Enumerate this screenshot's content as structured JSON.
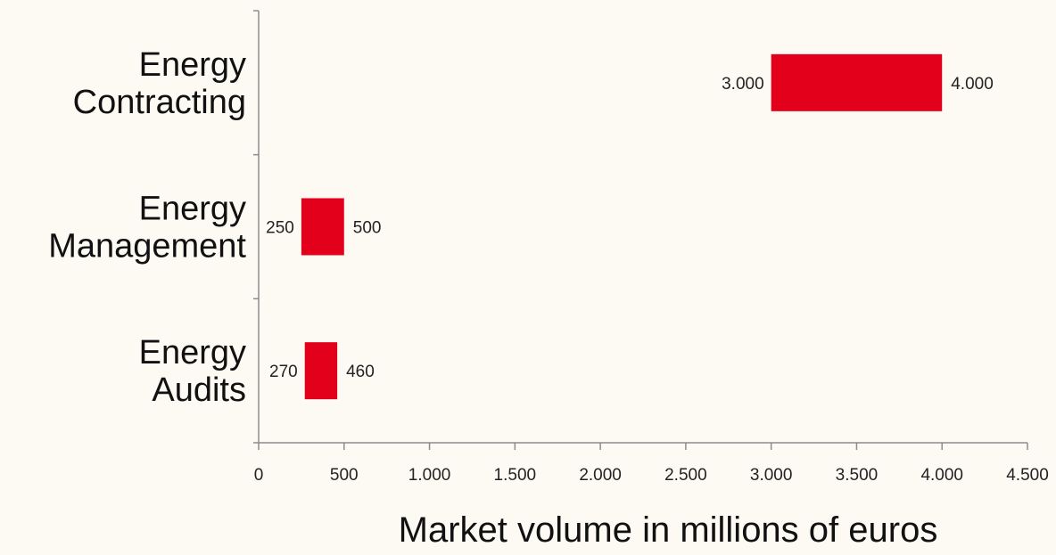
{
  "chart_data": {
    "type": "bar",
    "orientation": "horizontal",
    "style": "floating range bars",
    "categories": [
      [
        "Energy",
        "Contracting"
      ],
      [
        "Energy",
        "Management"
      ],
      [
        "Energy",
        "Audits"
      ]
    ],
    "ranges": [
      {
        "low": 3000,
        "high": 4000,
        "low_label": "3.000",
        "high_label": "4.000"
      },
      {
        "low": 250,
        "high": 500,
        "low_label": "250",
        "high_label": "500"
      },
      {
        "low": 270,
        "high": 460,
        "low_label": "270",
        "high_label": "460"
      }
    ],
    "xticks": [
      0,
      500,
      1000,
      1500,
      2000,
      2500,
      3000,
      3500,
      4000,
      4500
    ],
    "xtick_labels": [
      "0",
      "500",
      "1.000",
      "1.500",
      "2.000",
      "2.500",
      "3.000",
      "3.500",
      "4.000",
      "4.500"
    ],
    "xlim": [
      0,
      4500
    ],
    "xlabel": "Market volume in millions of euros",
    "title": "",
    "grid": false,
    "legend": "none",
    "bar_color": "#e2001a",
    "background_color": "#fcfaf3"
  }
}
